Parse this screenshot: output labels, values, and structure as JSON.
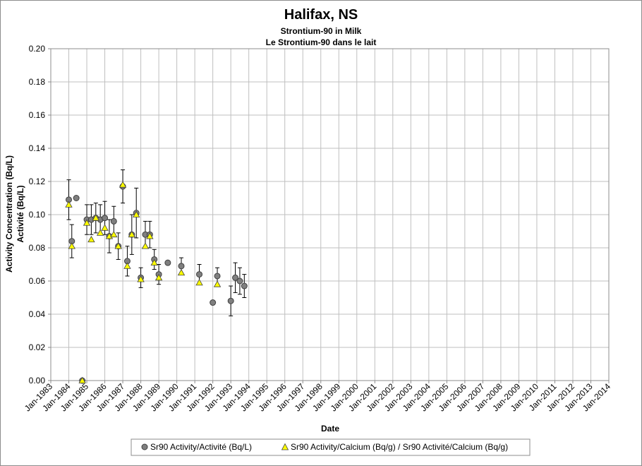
{
  "chart_data": {
    "type": "scatter",
    "title": "Halifax, NS",
    "subtitle_lines": [
      "Strontium-90 in Milk",
      "Le Strontium-90 dans le lait"
    ],
    "xlabel": "Date",
    "ylabel_lines": [
      "Activity Concentration (Bq/L)",
      "Activité (Bq/L)"
    ],
    "ylim": [
      0,
      0.2
    ],
    "y_ticks": [
      "0.00",
      "0.02",
      "0.04",
      "0.06",
      "0.08",
      "0.10",
      "0.12",
      "0.14",
      "0.16",
      "0.18",
      "0.20"
    ],
    "xlim": [
      "1983-01",
      "2014-01"
    ],
    "x_ticks": [
      "Jan-1983",
      "Jan-1984",
      "Jan-1985",
      "Jan-1986",
      "Jan-1987",
      "Jan-1988",
      "Jan-1989",
      "Jan-1990",
      "Jan-1991",
      "Jan-1992",
      "Jan-1993",
      "Jan-1994",
      "Jan-1995",
      "Jan-1996",
      "Jan-1997",
      "Jan-1998",
      "Jan-1999",
      "Jan-2000",
      "Jan-2001",
      "Jan-2002",
      "Jan-2003",
      "Jan-2004",
      "Jan-2005",
      "Jan-2006",
      "Jan-2007",
      "Jan-2008",
      "Jan-2009",
      "Jan-2010",
      "Jan-2011",
      "Jan-2012",
      "Jan-2013",
      "Jan-2014"
    ],
    "grid": true,
    "legend_position": "bottom",
    "series": [
      {
        "name": "Sr90 Activity/Activité (Bq/L)",
        "marker": "circle",
        "color": "#7f7f7f",
        "points": [
          {
            "x": "1984-01",
            "y": 0.109,
            "err": 0.012
          },
          {
            "x": "1984-03",
            "y": 0.084,
            "err": 0.01
          },
          {
            "x": "1984-06",
            "y": 0.11
          },
          {
            "x": "1984-10",
            "y": 0.0
          },
          {
            "x": "1985-01",
            "y": 0.097,
            "err": 0.009
          },
          {
            "x": "1985-04",
            "y": 0.097,
            "err": 0.009
          },
          {
            "x": "1985-07",
            "y": 0.098,
            "err": 0.009
          },
          {
            "x": "1985-10",
            "y": 0.097,
            "err": 0.009
          },
          {
            "x": "1986-01",
            "y": 0.098,
            "err": 0.01
          },
          {
            "x": "1986-04",
            "y": 0.087,
            "err": 0.01
          },
          {
            "x": "1986-07",
            "y": 0.096,
            "err": 0.009
          },
          {
            "x": "1986-10",
            "y": 0.081,
            "err": 0.008
          },
          {
            "x": "1987-01",
            "y": 0.117,
            "err": 0.01
          },
          {
            "x": "1987-04",
            "y": 0.072,
            "err": 0.009
          },
          {
            "x": "1987-07",
            "y": 0.088,
            "err": 0.012
          },
          {
            "x": "1987-10",
            "y": 0.101,
            "err": 0.015
          },
          {
            "x": "1988-01",
            "y": 0.062,
            "err": 0.006
          },
          {
            "x": "1988-04",
            "y": 0.088,
            "err": 0.008
          },
          {
            "x": "1988-07",
            "y": 0.088,
            "err": 0.008
          },
          {
            "x": "1988-10",
            "y": 0.073,
            "err": 0.006
          },
          {
            "x": "1989-01",
            "y": 0.064,
            "err": 0.006
          },
          {
            "x": "1989-07",
            "y": 0.071
          },
          {
            "x": "1990-04",
            "y": 0.069,
            "err": 0.005
          },
          {
            "x": "1991-04",
            "y": 0.064,
            "err": 0.006
          },
          {
            "x": "1992-01",
            "y": 0.047
          },
          {
            "x": "1992-04",
            "y": 0.063,
            "err": 0.005
          },
          {
            "x": "1993-01",
            "y": 0.048,
            "err": 0.009
          },
          {
            "x": "1993-04",
            "y": 0.062,
            "err": 0.009
          },
          {
            "x": "1993-07",
            "y": 0.06,
            "err": 0.008
          },
          {
            "x": "1993-10",
            "y": 0.057,
            "err": 0.007
          }
        ]
      },
      {
        "name": "Sr90 Activity/Calcium (Bq/g) / Sr90 Activité/Calcium (Bq/g)",
        "marker": "triangle",
        "color": "#ffff00",
        "points": [
          {
            "x": "1984-01",
            "y": 0.106
          },
          {
            "x": "1984-03",
            "y": 0.081
          },
          {
            "x": "1984-10",
            "y": 0.0
          },
          {
            "x": "1985-01",
            "y": 0.095
          },
          {
            "x": "1985-04",
            "y": 0.085
          },
          {
            "x": "1985-07",
            "y": 0.098
          },
          {
            "x": "1985-10",
            "y": 0.089
          },
          {
            "x": "1986-01",
            "y": 0.092
          },
          {
            "x": "1986-04",
            "y": 0.087
          },
          {
            "x": "1986-07",
            "y": 0.088
          },
          {
            "x": "1986-10",
            "y": 0.081
          },
          {
            "x": "1987-01",
            "y": 0.118
          },
          {
            "x": "1987-04",
            "y": 0.069
          },
          {
            "x": "1987-07",
            "y": 0.088
          },
          {
            "x": "1987-10",
            "y": 0.1
          },
          {
            "x": "1988-01",
            "y": 0.061
          },
          {
            "x": "1988-04",
            "y": 0.081
          },
          {
            "x": "1988-07",
            "y": 0.087
          },
          {
            "x": "1988-10",
            "y": 0.071
          },
          {
            "x": "1989-01",
            "y": 0.062
          },
          {
            "x": "1990-04",
            "y": 0.065
          },
          {
            "x": "1991-04",
            "y": 0.059
          },
          {
            "x": "1992-04",
            "y": 0.058
          }
        ]
      }
    ]
  }
}
